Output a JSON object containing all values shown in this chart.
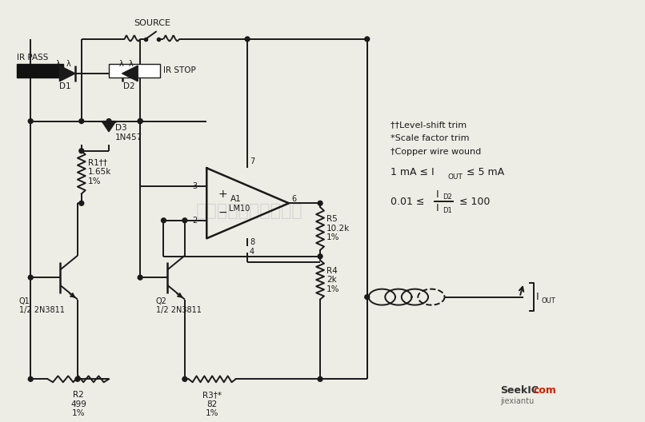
{
  "bg_color": "#eeede5",
  "line_color": "#1a1a1a",
  "figsize": [
    8.06,
    5.28
  ],
  "dpi": 100,
  "annotations": {
    "source": "SOURCE",
    "ir_pass": "IR PASS",
    "ir_stop": "IR STOP",
    "d1": "D1",
    "d2": "D2",
    "d3": "D3\n1N457",
    "r1": "R1††\n1.65k\n1%",
    "r2": "R2\n499\n1%",
    "r3": "R3†*\n82\n1%",
    "r4": "R4\n2k\n1%",
    "r5": "R5\n10.2k\n1%",
    "q1": "Q1\n1/2 2N3811",
    "q2": "Q2\n1/2 2N3811",
    "note1": "††Level-shift trim",
    "note2": "*Scale factor trim",
    "note3": "†Copper wire wound",
    "seekic": "SeekIC",
    "com": "com",
    "jiexiantu": "jiexiantu"
  }
}
